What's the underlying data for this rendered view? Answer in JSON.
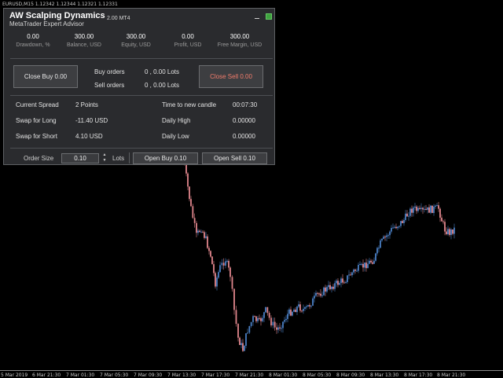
{
  "chart": {
    "symbol_line": "EURUSD,M15  1.12342  1.12344  1.12321  1.12331",
    "bull_color": "#4a7fc4",
    "bear_color": "#e0868c",
    "time_labels": [
      "5 Mar 2019",
      "6 Mar 21:30",
      "7 Mar 01:30",
      "7 Mar 05:30",
      "7 Mar 09:30",
      "7 Mar 13:30",
      "7 Mar 17:30",
      "7 Mar 21:30",
      "8 Mar 01:30",
      "8 Mar 05:30",
      "8 Mar 09:30",
      "8 Mar 13:30",
      "8 Mar 17:30",
      "8 Mar 21:30"
    ]
  },
  "panel": {
    "brand_title": "AW Scalping Dynamics",
    "brand_subtitle": "MetaTrader Expert Advisor",
    "version": "2.00 MT4",
    "status_color": "#3fa33f",
    "stats": [
      {
        "value": "0.00",
        "label": "Drawdown, %"
      },
      {
        "value": "300.00",
        "label": "Balance, USD"
      },
      {
        "value": "300.00",
        "label": "Equity, USD"
      },
      {
        "value": "0.00",
        "label": "Profit, USD"
      },
      {
        "value": "300.00",
        "label": "Free Margin, USD"
      }
    ],
    "close_buy_label": "Close Buy 0.00",
    "close_sell_label": "Close Sell 0.00",
    "buy_orders_label": "Buy orders",
    "buy_orders_value": "0 , 0.00 Lots",
    "sell_orders_label": "Sell orders",
    "sell_orders_value": "0 , 0.00 Lots",
    "info": {
      "spread_label": "Current Spread",
      "spread_value": "2 Points",
      "swap_long_label": "Swap for Long",
      "swap_long_value": "-11.40 USD",
      "swap_short_label": "Swap for Short",
      "swap_short_value": "4.10 USD",
      "candle_label": "Time to new candle",
      "candle_value": "00:07:30",
      "high_label": "Daily High",
      "high_value": "0.00000",
      "low_label": "Daily Low",
      "low_value": "0.00000"
    },
    "order_size_label": "Order Size",
    "order_size_value": "0.10",
    "lots_label": "Lots",
    "open_buy_label": "Open Buy 0.10",
    "open_sell_label": "Open Sell 0.10"
  }
}
